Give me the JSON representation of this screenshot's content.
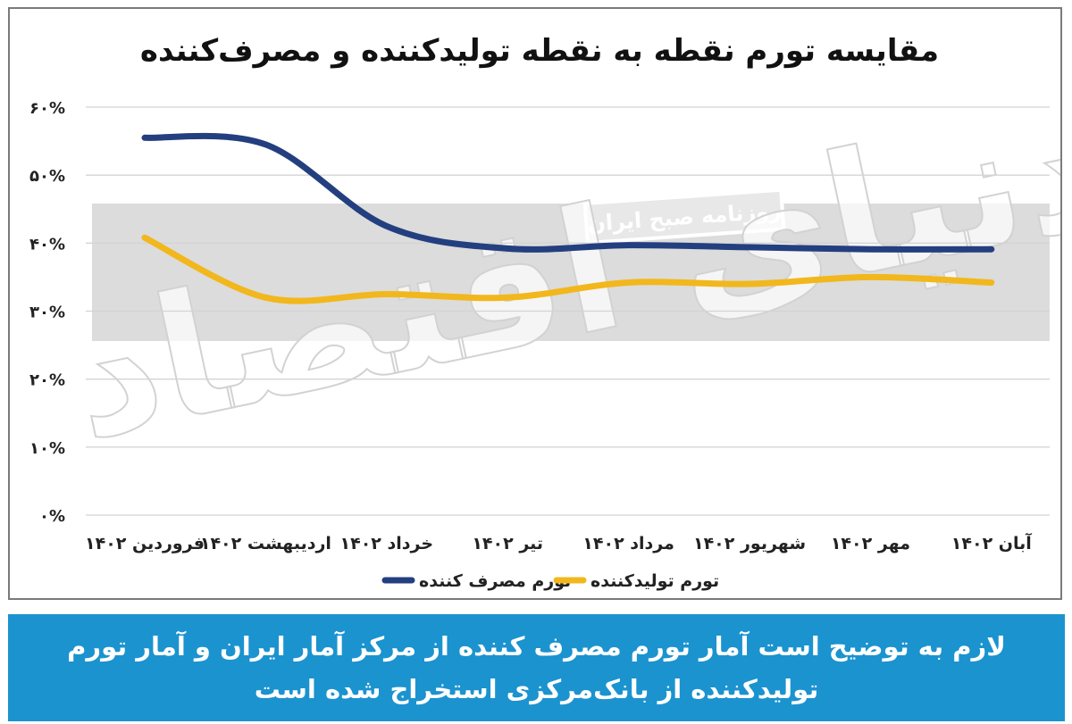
{
  "chart_data": {
    "type": "line",
    "title": "مقایسه تورم نقطه به نقطه تولیدکننده و مصرف‌کننده",
    "categories": [
      "فروردین ۱۴۰۲",
      "اردیبهشت ۱۴۰۲",
      "خرداد ۱۴۰۲",
      "تیر ۱۴۰۲",
      "مرداد ۱۴۰۲",
      "شهریور ۱۴۰۲",
      "مهر ۱۴۰۲",
      "آبان ۱۴۰۲"
    ],
    "y_ticks": [
      "۰%",
      "۱۰%",
      "۲۰%",
      "۳۰%",
      "۴۰%",
      "۵۰%",
      "۶۰%"
    ],
    "ylim": [
      0,
      60
    ],
    "grid": true,
    "legend_position": "bottom",
    "series": [
      {
        "name": "تورم مصرف کننده",
        "color": "#243f7f",
        "values": [
          55.5,
          54.5,
          42.5,
          39.2,
          39.7,
          39.4,
          39.1,
          39.1
        ]
      },
      {
        "name": "تورم تولیدکننده",
        "color": "#f2b71c",
        "values": [
          40.8,
          32.0,
          32.5,
          32.0,
          34.2,
          34.0,
          35.0,
          34.2
        ]
      }
    ]
  },
  "watermark": {
    "brand_text": "دنیای اقتصاد",
    "tagline": "روزنامه صبح ایران"
  },
  "footer": {
    "note": "لازم به توضیح است آمار تورم مصرف کننده از مرکز آمار ایران و آمار تورم تولیدکننده از بانک‌مرکزی استخراج شده است",
    "background": "#1b93cf"
  }
}
